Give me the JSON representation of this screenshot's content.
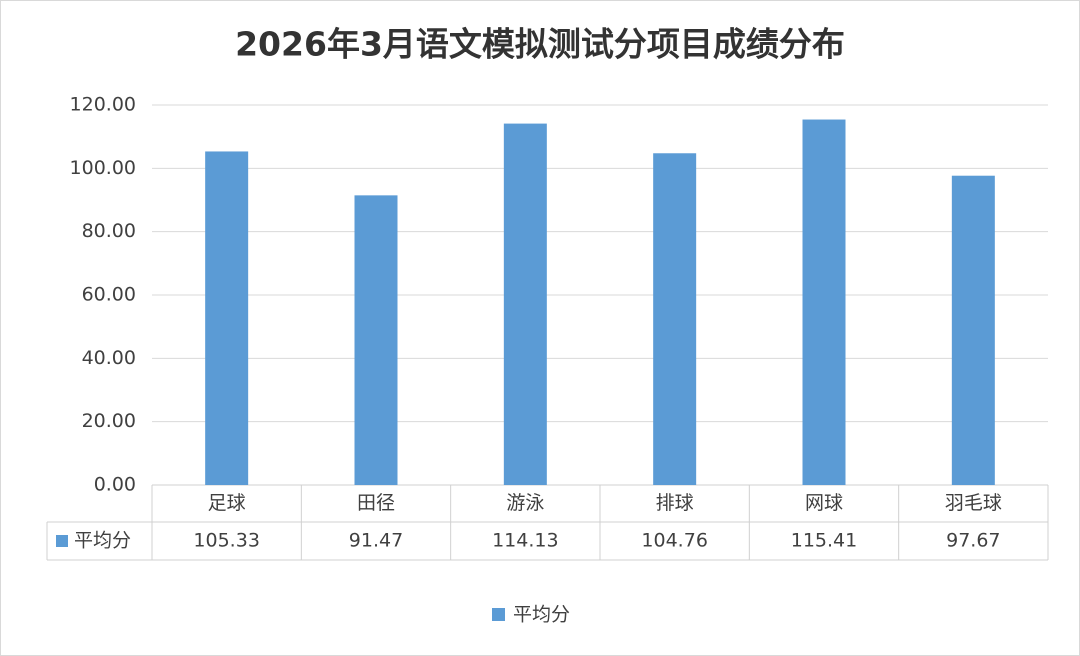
{
  "chart_data": {
    "type": "bar",
    "title": "2026年3月语文模拟测试分项目成绩分布",
    "categories": [
      "足球",
      "田径",
      "游泳",
      "排球",
      "网球",
      "羽毛球"
    ],
    "series": [
      {
        "name": "平均分",
        "color": "#5b9bd5",
        "values": [
          105.33,
          91.47,
          114.13,
          104.76,
          115.41,
          97.67
        ]
      }
    ],
    "ylim": [
      0,
      120
    ],
    "yticks": [
      {
        "value": 0,
        "label": "0.00"
      },
      {
        "value": 20,
        "label": "20.00"
      },
      {
        "value": 40,
        "label": "40.00"
      },
      {
        "value": 60,
        "label": "60.00"
      },
      {
        "value": 80,
        "label": "80.00"
      },
      {
        "value": 100,
        "label": "100.00"
      },
      {
        "value": 120,
        "label": "120.00"
      }
    ],
    "grid": true,
    "legend": "bottom",
    "data_table": true
  }
}
